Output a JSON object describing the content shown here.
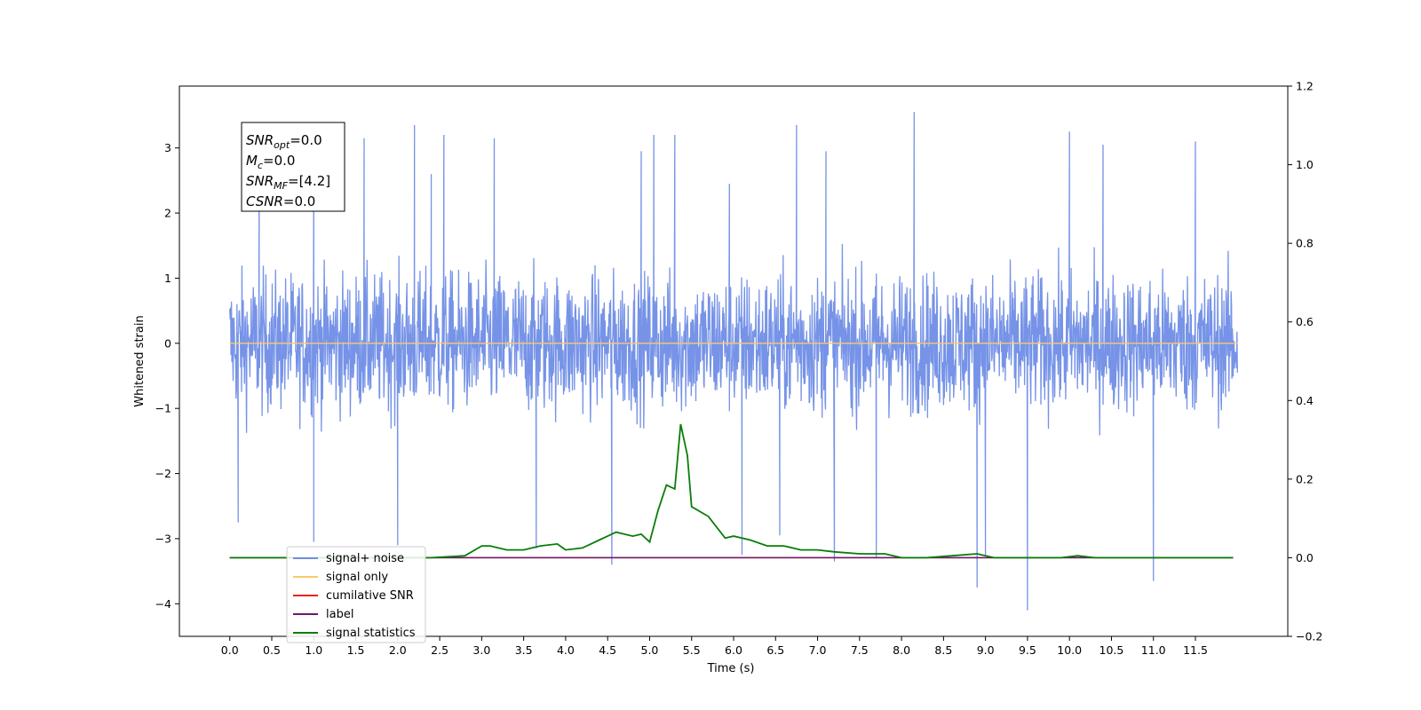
{
  "chart_data": {
    "type": "line",
    "xlabel": "Time (s)",
    "ylabel_left": "Whitened strain",
    "ylabel_right": "",
    "xlim": [
      -0.6,
      12.6
    ],
    "ylim_left": [
      -4.5,
      3.95
    ],
    "ylim_right": [
      -0.2,
      1.2
    ],
    "x_ticks": [
      0.0,
      0.5,
      1.0,
      1.5,
      2.0,
      2.5,
      3.0,
      3.5,
      4.0,
      4.5,
      5.0,
      5.5,
      6.0,
      6.5,
      7.0,
      7.5,
      8.0,
      8.5,
      9.0,
      9.5,
      10.0,
      10.5,
      11.0,
      11.5
    ],
    "x_tick_labels": [
      "0.0",
      "0.5",
      "1.0",
      "1.5",
      "2.0",
      "2.5",
      "3.0",
      "3.5",
      "4.0",
      "4.5",
      "5.0",
      "5.5",
      "6.0",
      "6.5",
      "7.0",
      "7.5",
      "8.0",
      "8.5",
      "9.0",
      "9.5",
      "10.0",
      "10.5",
      "11.0",
      "11.5"
    ],
    "y_left_ticks": [
      -4,
      -3,
      -2,
      -1,
      0,
      1,
      2,
      3
    ],
    "y_left_tick_labels": [
      "−4",
      "−3",
      "−2",
      "−1",
      "0",
      "1",
      "2",
      "3"
    ],
    "y_right_ticks": [
      -0.2,
      0.0,
      0.2,
      0.4,
      0.6,
      0.8,
      1.0,
      1.2
    ],
    "y_right_tick_labels": [
      "−0.2",
      "0.0",
      "0.2",
      "0.4",
      "0.6",
      "0.8",
      "1.0",
      "1.2"
    ],
    "grid": false,
    "legend_position": "lower-left",
    "series": [
      {
        "name": "signal+ noise",
        "axis": "left",
        "color": "#6f8de6",
        "description_values": "dense noise between about -2.5 and 2.5 with spikes",
        "x_range": [
          0.0,
          12.0
        ],
        "spike_points": [
          {
            "x": 0.1,
            "y": -2.75
          },
          {
            "x": 0.35,
            "y": 2.45
          },
          {
            "x": 1.0,
            "y": 2.65
          },
          {
            "x": 1.0,
            "y": -3.05
          },
          {
            "x": 1.6,
            "y": 3.15
          },
          {
            "x": 2.0,
            "y": -3.1
          },
          {
            "x": 2.2,
            "y": 3.35
          },
          {
            "x": 2.4,
            "y": 2.6
          },
          {
            "x": 2.55,
            "y": 3.2
          },
          {
            "x": 3.15,
            "y": 3.15
          },
          {
            "x": 3.65,
            "y": -3.15
          },
          {
            "x": 4.55,
            "y": -3.4
          },
          {
            "x": 4.9,
            "y": 2.95
          },
          {
            "x": 5.05,
            "y": 3.2
          },
          {
            "x": 5.3,
            "y": 3.2
          },
          {
            "x": 5.95,
            "y": 2.45
          },
          {
            "x": 6.1,
            "y": -3.25
          },
          {
            "x": 6.55,
            "y": -2.95
          },
          {
            "x": 6.75,
            "y": 3.35
          },
          {
            "x": 7.1,
            "y": 2.95
          },
          {
            "x": 7.2,
            "y": -3.35
          },
          {
            "x": 7.7,
            "y": -3.3
          },
          {
            "x": 8.15,
            "y": 3.55
          },
          {
            "x": 8.9,
            "y": -3.75
          },
          {
            "x": 9.0,
            "y": -3.25
          },
          {
            "x": 9.5,
            "y": -4.1
          },
          {
            "x": 10.0,
            "y": 3.25
          },
          {
            "x": 10.4,
            "y": 3.05
          },
          {
            "x": 11.0,
            "y": -3.65
          },
          {
            "x": 11.5,
            "y": 3.1
          }
        ]
      },
      {
        "name": "signal only",
        "axis": "left",
        "color": "#fbc86c",
        "value": 0.0
      },
      {
        "name": "cumilative SNR",
        "axis": "right",
        "color": "#e8251e",
        "value": 0.0
      },
      {
        "name": "label",
        "axis": "right",
        "color": "#6e176e",
        "value": 0.0
      },
      {
        "name": "signal statistics",
        "axis": "right",
        "color": "#0a7d0a",
        "x": [
          0.0,
          0.5,
          1.0,
          1.5,
          2.0,
          2.4,
          2.8,
          3.0,
          3.1,
          3.3,
          3.5,
          3.7,
          3.9,
          4.0,
          4.2,
          4.4,
          4.5,
          4.6,
          4.8,
          4.9,
          5.0,
          5.1,
          5.2,
          5.3,
          5.37,
          5.45,
          5.5,
          5.7,
          5.9,
          6.0,
          6.2,
          6.4,
          6.6,
          6.8,
          7.0,
          7.2,
          7.5,
          7.8,
          8.0,
          8.3,
          8.6,
          8.9,
          9.1,
          9.3,
          9.6,
          9.9,
          10.1,
          10.3,
          10.6,
          11.0,
          11.5,
          11.95
        ],
        "y": [
          0.0,
          0.0,
          0.0,
          0.0,
          0.0,
          0.0,
          0.005,
          0.03,
          0.03,
          0.02,
          0.02,
          0.03,
          0.035,
          0.02,
          0.025,
          0.045,
          0.055,
          0.065,
          0.055,
          0.06,
          0.04,
          0.12,
          0.185,
          0.175,
          0.34,
          0.26,
          0.13,
          0.105,
          0.05,
          0.055,
          0.045,
          0.03,
          0.03,
          0.02,
          0.02,
          0.015,
          0.01,
          0.01,
          0.0,
          0.0,
          0.005,
          0.01,
          0.0,
          0.0,
          0.0,
          0.0,
          0.005,
          0.0,
          0.0,
          0.0,
          0.0,
          0.0
        ]
      }
    ],
    "annotation_lines": [
      "=0.0",
      "=0.0",
      "=[4.2]",
      "=0.0"
    ],
    "annotation_symbols": [
      "SNR",
      "M",
      "SNR",
      "CSNR"
    ],
    "annotation_subscripts": [
      "opt",
      "c",
      "MF",
      ""
    ]
  }
}
